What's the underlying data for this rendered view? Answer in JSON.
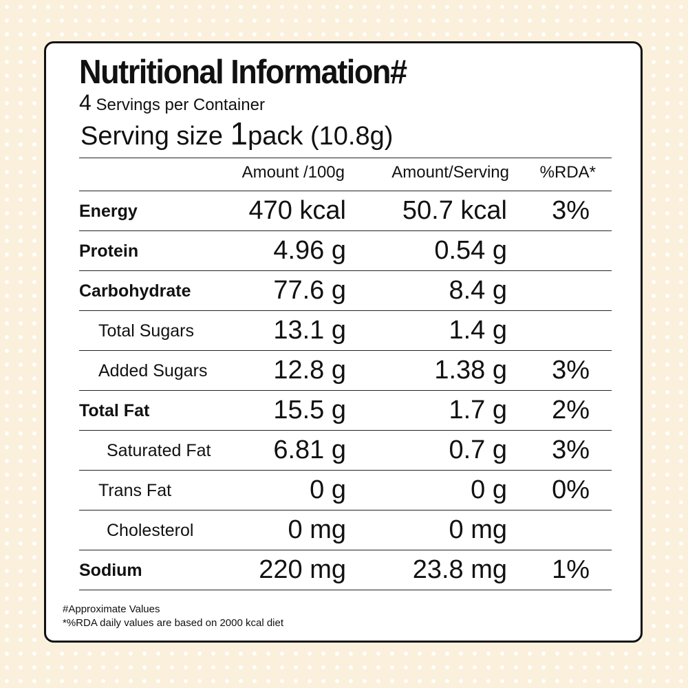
{
  "title": "Nutritional Information#",
  "servings": {
    "count": "4",
    "text": "Servings per Container"
  },
  "serving_size": {
    "label": "Serving size",
    "amount": "1",
    "unit_text": "pack (10.8g)"
  },
  "columns": [
    "Amount /100g",
    "Amount/Serving",
    "%RDA*"
  ],
  "rows": [
    {
      "label": "Energy",
      "bold": true,
      "indent": 0,
      "per100": "470 kcal",
      "serving": "50.7 kcal",
      "rda": "3%"
    },
    {
      "label": "Protein",
      "bold": true,
      "indent": 0,
      "per100": "4.96 g",
      "serving": "0.54 g",
      "rda": ""
    },
    {
      "label": "Carbohydrate",
      "bold": true,
      "indent": 0,
      "per100": "77.6 g",
      "serving": "8.4 g",
      "rda": ""
    },
    {
      "label": "Total Sugars",
      "bold": false,
      "indent": 2,
      "per100": "13.1 g",
      "serving": "1.4 g",
      "rda": ""
    },
    {
      "label": "Added Sugars",
      "bold": false,
      "indent": 2,
      "per100": "12.8 g",
      "serving": "1.38 g",
      "rda": "3%"
    },
    {
      "label": "Total Fat",
      "bold": true,
      "indent": 0,
      "per100": "15.5 g",
      "serving": "1.7 g",
      "rda": "2%"
    },
    {
      "label": "Saturated Fat",
      "bold": false,
      "indent": 1,
      "per100": "6.81 g",
      "serving": "0.7 g",
      "rda": "3%"
    },
    {
      "label": "Trans Fat",
      "bold": false,
      "indent": 2,
      "per100": "0 g",
      "serving": "0 g",
      "rda": "0%"
    },
    {
      "label": "Cholesterol",
      "bold": false,
      "indent": 1,
      "per100": "0 mg",
      "serving": "0 mg",
      "rda": ""
    },
    {
      "label": "Sodium",
      "bold": true,
      "indent": 0,
      "per100": "220 mg",
      "serving": "23.8 mg",
      "rda": "1%"
    }
  ],
  "footnotes": [
    "#Approximate Values",
    "*%RDA daily values are based on 2000 kcal diet"
  ]
}
